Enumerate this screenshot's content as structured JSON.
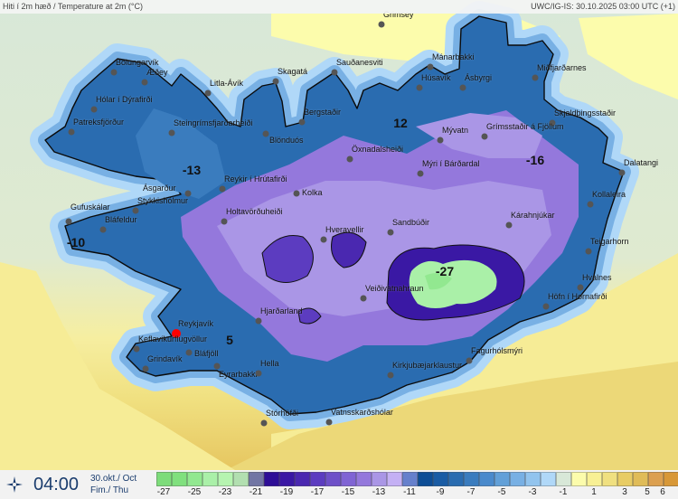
{
  "header": {
    "title": "Hiti í 2m hæð / Temperature at 2m (°C)",
    "source_time": "UWC/IG-IS: 30.10.2025 03:00 UTC (+1)"
  },
  "footer": {
    "logo_icon": "compass-star-icon",
    "time": "04:00",
    "date_line1": "30.okt./ Oct",
    "date_line2": "Fim./ Thu"
  },
  "legend": {
    "colors": [
      "#7ddc7a",
      "#80e07e",
      "#92e890",
      "#aaf0a8",
      "#b6f4b0",
      "#b2dfb0",
      "#7276a4",
      "#2e0e96",
      "#3a18a4",
      "#4a28b0",
      "#5c3cc0",
      "#6e50c8",
      "#8064d4",
      "#9478dc",
      "#aa96e6",
      "#c4b0f4",
      "#6680cc",
      "#0e4e96",
      "#1a5ca4",
      "#2a6cb0",
      "#3a7cbe",
      "#4a8acc",
      "#62a0d8",
      "#78b0e4",
      "#92c4ee",
      "#b0d8f8",
      "#d8e8d8",
      "#fcfcac",
      "#f8f094",
      "#f0e080",
      "#e8cc64",
      "#e0bc58",
      "#dca050",
      "#d89838"
    ],
    "labels": [
      "-27",
      "-25",
      "-23",
      "-21",
      "-19",
      "-17",
      "-15",
      "-13",
      "-11",
      "-9",
      "-7",
      "-5",
      "-3",
      "-1",
      "1",
      "3",
      "5",
      "6"
    ]
  },
  "stations": [
    "Grimsey",
    "Bolungarvík",
    "Æðey",
    "Litla-Ávík",
    "Skagatá",
    "Sauðanesviti",
    "Mánarbakki",
    "Húsavík",
    "Ásbyrgi",
    "Miðfjarðarnes",
    "Hólar í Dýrafirði",
    "Patreksfjörður",
    "Steingrímsfjarðarheiði",
    "Blönduós",
    "Bergstaðir",
    "Skjaldþingsstaðir",
    "Grímsstaðir á Fjöllum",
    "Mývatn",
    "Öxnadalsheiði",
    "Mýri í Bárðardal",
    "Dalatangi",
    "Ásgarður",
    "Reykir í Hrútafirði",
    "Kolka",
    "Stykkishólmur",
    "Holtavörðuheiði",
    "Gufuskálar",
    "Bláfeldur",
    "Kollaleira",
    "Kárahnjúkar",
    "Sandbúðir",
    "Hveravellir",
    "Teigarhorn",
    "Hvalnes",
    "Veiðivatnahraun",
    "Höfn í Hornafirði",
    "Hjarðarland",
    "Reykjavík",
    "Keflavíkurflugvöllur",
    "Bláfjöll",
    "Grindavík",
    "Eyrarbakki",
    "Hella",
    "Fagurhólsmýri",
    "Kirkjubæjarklaustur",
    "Stórhöfði",
    "Vatnsskarðshólar"
  ],
  "map_values": [
    "-13",
    "-10",
    "12",
    "-16",
    "-27",
    "5"
  ],
  "selected_location_color": "#ff0000"
}
